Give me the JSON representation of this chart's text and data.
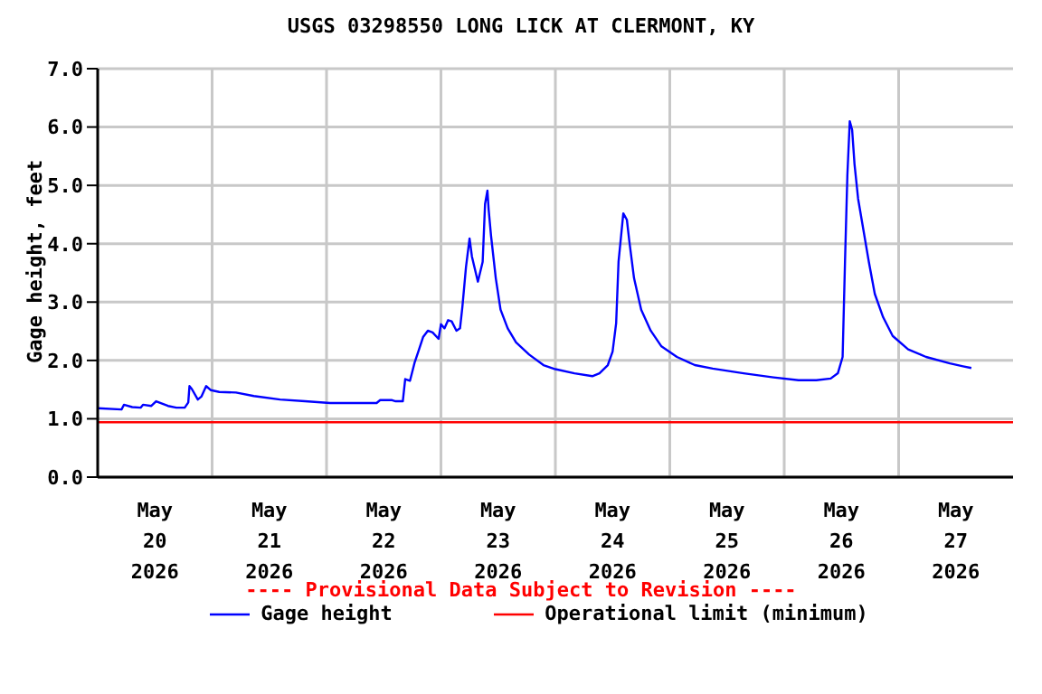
{
  "chart_data": {
    "type": "line",
    "title": "USGS 03298550 LONG LICK AT CLERMONT, KY",
    "ylabel": "Gage height, feet",
    "annotations": [
      "---- Provisional Data Subject to Revision ----"
    ],
    "xlim": [
      "2026-05-20",
      "2026-05-28"
    ],
    "xticks": [
      {
        "value": "2026-05-20T12:00",
        "label": "May 20 2026"
      },
      {
        "value": "2026-05-21T12:00",
        "label": "May 21 2026"
      },
      {
        "value": "2026-05-22T12:00",
        "label": "May 22 2026"
      },
      {
        "value": "2026-05-23T12:00",
        "label": "May 23 2026"
      },
      {
        "value": "2026-05-24T12:00",
        "label": "May 24 2026"
      },
      {
        "value": "2026-05-25T12:00",
        "label": "May 25 2026"
      },
      {
        "value": "2026-05-26T12:00",
        "label": "May 26 2026"
      },
      {
        "value": "2026-05-27T12:00",
        "label": "May 27 2026"
      },
      {
        "value": "2026-05-21",
        "label": null
      },
      {
        "value": "2026-05-22",
        "label": null
      },
      {
        "value": "2026-05-23",
        "label": null
      },
      {
        "value": "2026-05-24",
        "label": null
      },
      {
        "value": "2026-05-25",
        "label": null
      },
      {
        "value": "2026-05-26",
        "label": null
      },
      {
        "value": "2026-05-27",
        "label": null
      }
    ],
    "ylim": [
      0,
      7
    ],
    "yticks": [
      {
        "value": 0,
        "label": "0.0"
      },
      {
        "value": 1,
        "label": "1.0"
      },
      {
        "value": 2,
        "label": "2.0"
      },
      {
        "value": 3,
        "label": "3.0"
      },
      {
        "value": 4,
        "label": "4.0"
      },
      {
        "value": 5,
        "label": "5.0"
      },
      {
        "value": 6,
        "label": "6.0"
      },
      {
        "value": 7,
        "label": "7.0"
      }
    ],
    "grid": true,
    "legend": "bottom",
    "series": [
      {
        "name": "Gage height",
        "color": "#0000ff",
        "x": [
          "2026-05-20T00:00",
          "2026-05-20T05:00",
          "2026-05-20T05:30",
          "2026-05-20T07:15",
          "2026-05-20T09:00",
          "2026-05-20T09:30",
          "2026-05-20T11:15",
          "2026-05-20T12:15",
          "2026-05-20T14:45",
          "2026-05-20T16:30",
          "2026-05-20T18:15",
          "2026-05-20T19:00",
          "2026-05-20T19:15",
          "2026-05-20T19:45",
          "2026-05-20T21:00",
          "2026-05-20T21:45",
          "2026-05-20T22:45",
          "2026-05-20T23:45",
          "2026-05-21T01:30",
          "2026-05-21T05:00",
          "2026-05-21T08:45",
          "2026-05-21T14:15",
          "2026-05-21T19:30",
          "2026-05-22T00:45",
          "2026-05-22T10:30",
          "2026-05-22T11:15",
          "2026-05-22T13:45",
          "2026-05-22T14:30",
          "2026-05-22T16:00",
          "2026-05-22T16:30",
          "2026-05-22T17:30",
          "2026-05-22T18:30",
          "2026-05-22T19:15",
          "2026-05-22T20:15",
          "2026-05-22T21:15",
          "2026-05-22T22:15",
          "2026-05-22T23:30",
          "2026-05-23T00:00",
          "2026-05-23T00:45",
          "2026-05-23T01:30",
          "2026-05-23T02:15",
          "2026-05-23T03:15",
          "2026-05-23T04:00",
          "2026-05-23T04:30",
          "2026-05-23T05:15",
          "2026-05-23T06:00",
          "2026-05-23T06:30",
          "2026-05-23T07:45",
          "2026-05-23T08:45",
          "2026-05-23T09:15",
          "2026-05-23T09:45",
          "2026-05-23T10:00",
          "2026-05-23T10:30",
          "2026-05-23T11:30",
          "2026-05-23T12:30",
          "2026-05-23T14:00",
          "2026-05-23T15:45",
          "2026-05-23T18:30",
          "2026-05-23T21:30",
          "2026-05-24T00:00",
          "2026-05-24T04:00",
          "2026-05-24T07:45",
          "2026-05-24T09:15",
          "2026-05-24T11:00",
          "2026-05-24T12:00",
          "2026-05-24T12:45",
          "2026-05-24T13:15",
          "2026-05-24T14:15",
          "2026-05-24T15:00",
          "2026-05-24T15:30",
          "2026-05-24T16:30",
          "2026-05-24T18:00",
          "2026-05-24T20:00",
          "2026-05-24T22:15",
          "2026-05-25T01:30",
          "2026-05-25T05:15",
          "2026-05-25T09:00",
          "2026-05-25T15:30",
          "2026-05-25T21:45",
          "2026-05-26T03:00",
          "2026-05-26T06:45",
          "2026-05-26T09:45",
          "2026-05-26T11:15",
          "2026-05-26T12:15",
          "2026-05-26T12:45",
          "2026-05-26T13:15",
          "2026-05-26T13:45",
          "2026-05-26T14:15",
          "2026-05-26T14:45",
          "2026-05-26T15:30",
          "2026-05-26T16:15",
          "2026-05-26T17:45",
          "2026-05-26T19:00",
          "2026-05-26T20:45",
          "2026-05-26T22:45",
          "2026-05-27T02:00",
          "2026-05-27T05:45",
          "2026-05-27T10:45",
          "2026-05-27T13:30",
          "2026-05-27T15:15"
        ],
        "values": [
          1.18,
          1.16,
          1.24,
          1.2,
          1.19,
          1.24,
          1.22,
          1.3,
          1.22,
          1.19,
          1.19,
          1.28,
          1.56,
          1.51,
          1.33,
          1.38,
          1.56,
          1.49,
          1.46,
          1.45,
          1.39,
          1.33,
          1.3,
          1.27,
          1.27,
          1.32,
          1.32,
          1.3,
          1.3,
          1.68,
          1.65,
          1.97,
          2.15,
          2.4,
          2.51,
          2.48,
          2.37,
          2.62,
          2.55,
          2.69,
          2.67,
          2.51,
          2.55,
          2.92,
          3.6,
          4.09,
          3.78,
          3.35,
          3.69,
          4.68,
          4.91,
          4.59,
          4.14,
          3.41,
          2.87,
          2.55,
          2.31,
          2.1,
          1.92,
          1.85,
          1.78,
          1.73,
          1.78,
          1.92,
          2.15,
          2.64,
          3.69,
          4.52,
          4.41,
          4.05,
          3.41,
          2.87,
          2.51,
          2.24,
          2.06,
          1.92,
          1.86,
          1.78,
          1.71,
          1.66,
          1.66,
          1.69,
          1.78,
          2.06,
          3.69,
          5.18,
          6.1,
          5.95,
          5.36,
          4.77,
          4.41,
          3.69,
          3.14,
          2.74,
          2.42,
          2.19,
          2.06,
          1.95,
          1.9,
          1.87
        ]
      },
      {
        "name": "Operational limit (minimum)",
        "color": "#ff0000",
        "x": [
          "2026-05-20",
          "2026-05-28"
        ],
        "values": [
          0.94,
          0.94
        ]
      }
    ]
  }
}
